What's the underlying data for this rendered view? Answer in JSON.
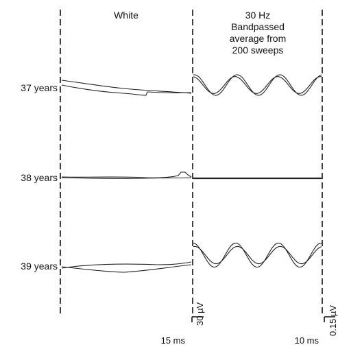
{
  "chart_data": {
    "type": "line",
    "panels": [
      {
        "label": "White"
      },
      {
        "label_lines": [
          "30 Hz",
          "Bandpassed",
          "average from",
          "200 sweeps"
        ]
      }
    ],
    "rows": [
      {
        "label": "37 years"
      },
      {
        "label": "38 years"
      },
      {
        "label": "39 years"
      }
    ],
    "scale_bars": [
      {
        "amplitude": "30 µV",
        "time": "15 ms"
      },
      {
        "amplitude": "0.15 µV",
        "time": "10 ms"
      }
    ],
    "bandpassed_cycles": 3,
    "relative_amplitude": {
      "37 years": 0.6,
      "38 years": 0,
      "39 years": 0.7
    }
  }
}
